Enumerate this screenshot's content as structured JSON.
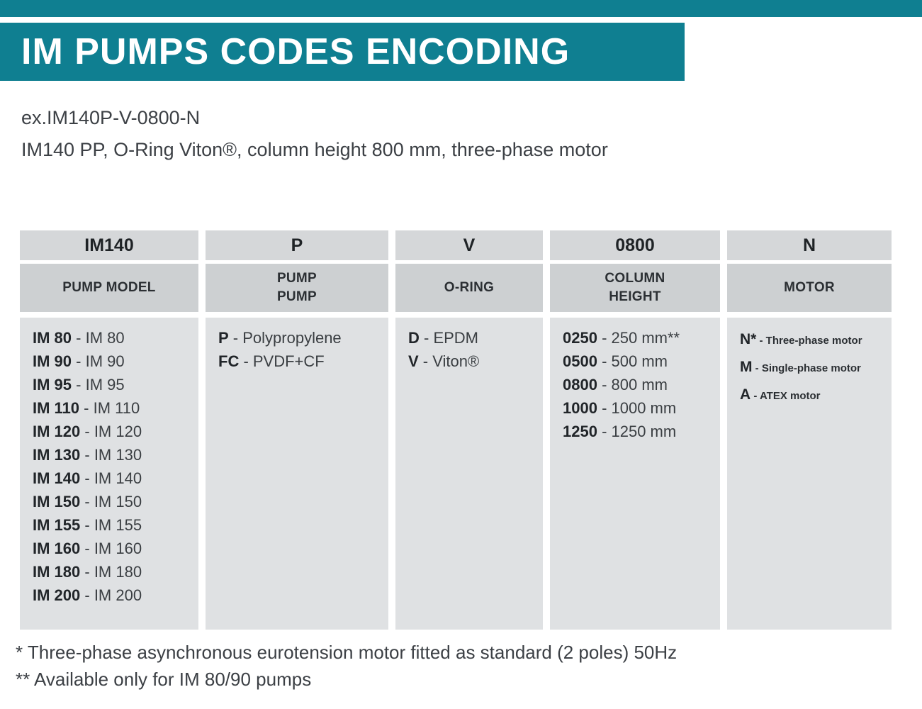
{
  "header": {
    "title": "IM PUMPS CODES ENCODING"
  },
  "example": {
    "code": "ex.IM140P-V-0800-N",
    "description": "IM140 PP, O-Ring Viton®, column height 800 mm, three-phase motor"
  },
  "table": {
    "columns": [
      {
        "id": "pump-model",
        "code": "IM140",
        "label_lines": [
          "PUMP MODEL"
        ],
        "entries": [
          {
            "key": "IM 80",
            "desc": "- IM 80"
          },
          {
            "key": "IM 90",
            "desc": "- IM 90"
          },
          {
            "key": "IM 95",
            "desc": "- IM 95"
          },
          {
            "key": "IM 110",
            "desc": "- IM 110"
          },
          {
            "key": "IM 120",
            "desc": "- IM 120"
          },
          {
            "key": "IM 130",
            "desc": "- IM 130"
          },
          {
            "key": "IM 140",
            "desc": "- IM 140"
          },
          {
            "key": "IM 150",
            "desc": "- IM 150"
          },
          {
            "key": "IM 155",
            "desc": "- IM 155"
          },
          {
            "key": "IM 160",
            "desc": "- IM 160"
          },
          {
            "key": "IM 180",
            "desc": "- IM 180"
          },
          {
            "key": "IM 200",
            "desc": "- IM 200"
          }
        ]
      },
      {
        "id": "pump-material",
        "code": "P",
        "label_lines": [
          "PUMP",
          "PUMP"
        ],
        "entries": [
          {
            "key": "P",
            "desc": "- Polypropylene"
          },
          {
            "key": "FC",
            "desc": "- PVDF+CF"
          }
        ]
      },
      {
        "id": "o-ring",
        "code": "V",
        "label_lines": [
          "O-RING"
        ],
        "entries": [
          {
            "key": "D",
            "desc": "- EPDM"
          },
          {
            "key": "V",
            "desc": "- Viton®"
          }
        ]
      },
      {
        "id": "column-height",
        "code": "0800",
        "label_lines": [
          "COLUMN",
          "HEIGHT"
        ],
        "entries": [
          {
            "key": "0250",
            "desc": "- 250 mm**"
          },
          {
            "key": "0500",
            "desc": "- 500 mm"
          },
          {
            "key": "0800",
            "desc": "- 800 mm"
          },
          {
            "key": "1000",
            "desc": "- 1000 mm"
          },
          {
            "key": "1250",
            "desc": "- 1250 mm"
          }
        ]
      },
      {
        "id": "motor",
        "code": "N",
        "label_lines": [
          "MOTOR"
        ],
        "entries": [
          {
            "key": "N*",
            "desc": "- Three-phase motor"
          },
          {
            "key": "M",
            "desc": "- Single-phase motor"
          },
          {
            "key": "A",
            "desc": "- ATEX motor"
          }
        ]
      }
    ]
  },
  "footnotes": [
    "* Three-phase asynchronous eurotension motor fitted as standard (2 poles) 50Hz",
    "** Available only for IM 80/90 pumps"
  ]
}
